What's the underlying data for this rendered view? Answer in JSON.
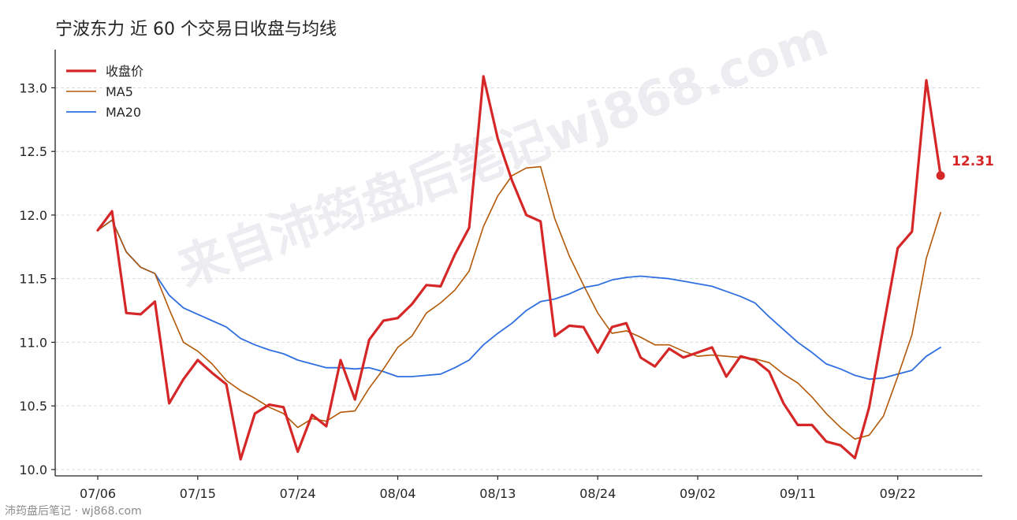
{
  "chart_data": {
    "type": "line",
    "title": "宁波东力 近 60 个交易日收盘与均线",
    "xlabel": "",
    "ylabel": "",
    "ylim": [
      9.95,
      13.3
    ],
    "y_ticks": [
      "10.0",
      "10.5",
      "11.0",
      "11.5",
      "12.0",
      "12.5",
      "13.0"
    ],
    "x_ticks": [
      {
        "index": 0,
        "label": "07/06"
      },
      {
        "index": 7,
        "label": "07/15"
      },
      {
        "index": 14,
        "label": "07/24"
      },
      {
        "index": 21,
        "label": "08/04"
      },
      {
        "index": 28,
        "label": "08/13"
      },
      {
        "index": 35,
        "label": "08/24"
      },
      {
        "index": 42,
        "label": "09/02"
      },
      {
        "index": 49,
        "label": "09/11"
      },
      {
        "index": 56,
        "label": "09/22"
      }
    ],
    "grid": "horizontal dashed",
    "legend": "top-left",
    "series": [
      {
        "name": "收盘价",
        "color": "#d62728",
        "values": [
          11.88,
          12.03,
          11.23,
          11.22,
          11.32,
          10.52,
          10.71,
          10.86,
          10.76,
          10.67,
          10.08,
          10.44,
          10.51,
          10.49,
          10.14,
          10.43,
          10.34,
          10.86,
          10.55,
          11.02,
          11.17,
          11.19,
          11.3,
          11.45,
          11.44,
          11.69,
          11.9,
          13.09,
          12.6,
          12.27,
          12.0,
          11.95,
          11.05,
          11.13,
          11.12,
          10.92,
          11.12,
          11.15,
          10.88,
          10.81,
          10.95,
          10.88,
          10.92,
          10.96,
          10.73,
          10.89,
          10.86,
          10.77,
          10.52,
          10.35,
          10.35,
          10.22,
          10.19,
          10.09,
          10.49,
          11.12,
          11.74,
          11.87,
          13.06,
          12.31
        ]
      },
      {
        "name": "MA5",
        "color": "#b35806",
        "values": [
          11.88,
          11.96,
          11.71,
          11.59,
          11.54,
          11.26,
          11.0,
          10.93,
          10.83,
          10.7,
          10.62,
          10.56,
          10.49,
          10.44,
          10.33,
          10.4,
          10.38,
          10.45,
          10.46,
          10.64,
          10.79,
          10.96,
          11.05,
          11.23,
          11.31,
          11.41,
          11.56,
          11.91,
          12.15,
          12.31,
          12.37,
          12.38,
          11.97,
          11.68,
          11.45,
          11.23,
          11.07,
          11.09,
          11.04,
          10.98,
          10.98,
          10.93,
          10.89,
          10.9,
          10.89,
          10.88,
          10.87,
          10.84,
          10.75,
          10.68,
          10.57,
          10.44,
          10.33,
          10.24,
          10.27,
          10.42,
          10.73,
          11.06,
          11.66,
          12.02
        ]
      },
      {
        "name": "MA20",
        "color": "#2f6fdf",
        "values": [
          11.88,
          11.96,
          11.71,
          11.59,
          11.54,
          11.37,
          11.27,
          11.22,
          11.17,
          11.12,
          11.03,
          10.98,
          10.94,
          10.91,
          10.86,
          10.83,
          10.8,
          10.8,
          10.79,
          10.8,
          10.77,
          10.73,
          10.73,
          10.74,
          10.75,
          10.8,
          10.86,
          10.98,
          11.07,
          11.15,
          11.25,
          11.32,
          11.34,
          11.38,
          11.43,
          11.45,
          11.49,
          11.51,
          11.52,
          11.51,
          11.5,
          11.48,
          11.46,
          11.44,
          11.4,
          11.36,
          11.31,
          11.2,
          11.1,
          11.0,
          10.92,
          10.83,
          10.79,
          10.74,
          10.71,
          10.72,
          10.75,
          10.78,
          10.89,
          10.96
        ]
      }
    ],
    "last_value_label": "12.31"
  },
  "watermark": "来自沛筠盘后笔记wj868.com",
  "footer": "沛筠盘后笔记 · wj868.com"
}
